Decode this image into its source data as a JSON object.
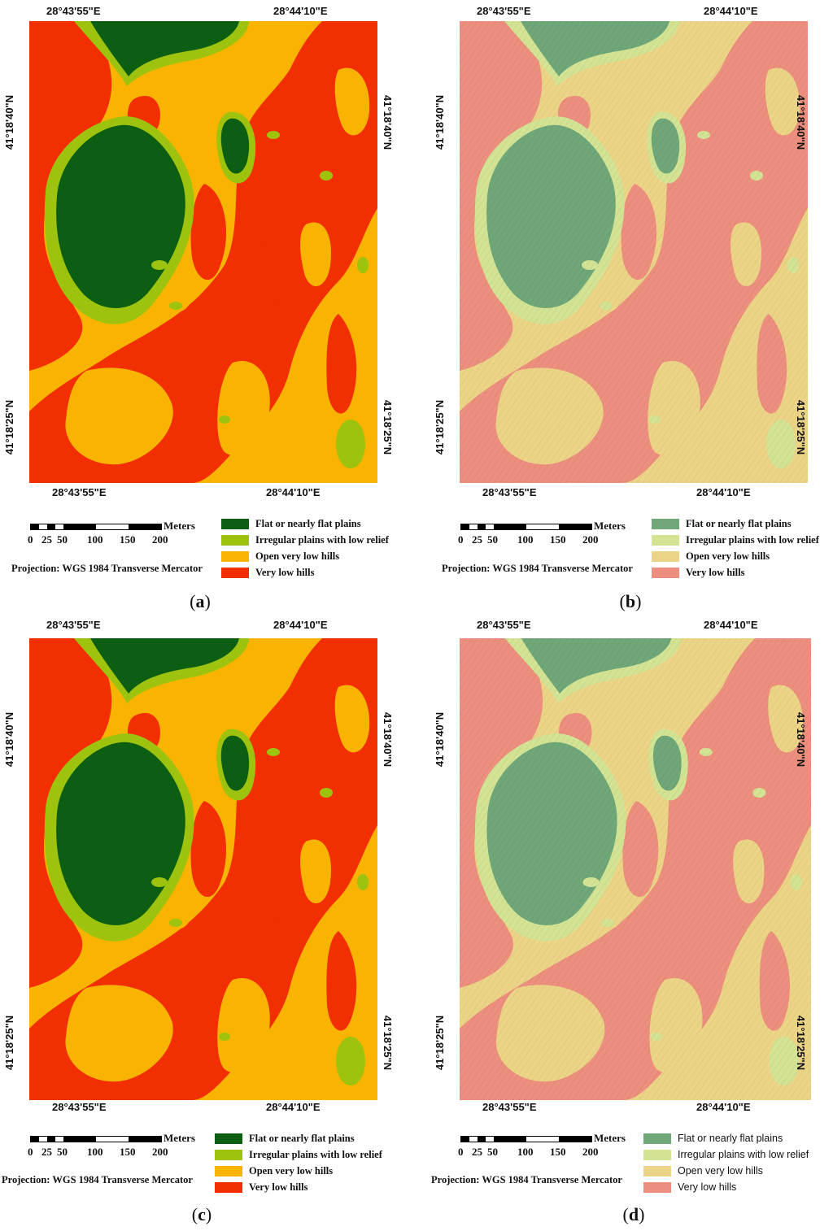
{
  "panels": [
    {
      "caption_letter": "a",
      "lon_top": [
        "28°43'55\"E",
        "28°44'10\"E"
      ],
      "lon_bottom": [
        "28°43'55\"E",
        "28°44'10\"E"
      ],
      "lat_left": [
        "41°18'40\"N",
        "41°18'25\"N"
      ],
      "lat_right": [
        "41°18'40\"N",
        "41°18'25\"N"
      ],
      "scale_unit": "Meters",
      "scale_ticks": [
        "0",
        "25",
        "50",
        "100",
        "150",
        "200"
      ],
      "projection": "Projection: WGS 1984 Transverse Mercator",
      "legend": [
        "Flat or nearly flat plains",
        "Irregular plains with low relief",
        "Open very low hills",
        "Very low hills"
      ],
      "hillshade": false
    },
    {
      "caption_letter": "b",
      "lon_top": [
        "28°43'55\"E",
        "28°44'10\"E"
      ],
      "lon_bottom": [
        "28°43'55\"E",
        "28°44'10\"E"
      ],
      "lat_left": [
        "41°18'40\"N",
        "41°18'25\"N"
      ],
      "lat_right": [
        "41°18'40\"N",
        "41°18'25\"N"
      ],
      "scale_unit": "Meters",
      "scale_ticks": [
        "0",
        "25",
        "50",
        "100",
        "150",
        "200"
      ],
      "projection": "Projection: WGS 1984 Transverse Mercator",
      "legend": [
        "Flat or nearly flat plains",
        "Irregular plains with low relief",
        "Open very low hills",
        "Very low hills"
      ],
      "hillshade": true
    },
    {
      "caption_letter": "c",
      "lon_top": [
        "28°43'55\"E",
        "28°44'10\"E"
      ],
      "lon_bottom": [
        "28°43'55\"E",
        "28°44'10\"E"
      ],
      "lat_left": [
        "41°18'40\"N",
        "41°18'25\"N"
      ],
      "lat_right": [
        "41°18'40\"N",
        "41°18'25\"N"
      ],
      "scale_unit": "Meters",
      "scale_ticks": [
        "0",
        "25",
        "50",
        "100",
        "150",
        "200"
      ],
      "projection": "Projection: WGS 1984 Transverse Mercator",
      "legend": [
        "Flat or nearly flat plains",
        "Irregular plains with low relief",
        "Open very low hills",
        "Very low hills"
      ],
      "hillshade": false
    },
    {
      "caption_letter": "d",
      "lon_top": [
        "28°43'55\"E",
        "28°44'10\"E"
      ],
      "lon_bottom": [
        "28°43'55\"E",
        "28°44'10\"E"
      ],
      "lat_left": [
        "41°18'40\"N",
        "41°18'25\"N"
      ],
      "lat_right": [
        "41°18'40\"N",
        "41°18'25\"N"
      ],
      "scale_unit": "Meters",
      "scale_ticks": [
        "0",
        "25",
        "50",
        "100",
        "150",
        "200"
      ],
      "projection": "Projection: WGS 1984 Transverse Mercator",
      "legend": [
        "Flat or nearly flat plains",
        "Irregular plains with low relief",
        "Open very low hills",
        "Very low hills"
      ],
      "hillshade": true
    }
  ],
  "colors": {
    "flat_plains": "#0b5e12",
    "irregular_plains": "#9dc30e",
    "open_very_low_hills": "#f8b400",
    "very_low_hills": "#f22f00",
    "flat_plains_shaded": "#6fa779",
    "irregular_plains_shaded": "#d3e394",
    "open_very_low_hills_shaded": "#ecd487",
    "very_low_hills_shaded": "#ec8f7e"
  }
}
